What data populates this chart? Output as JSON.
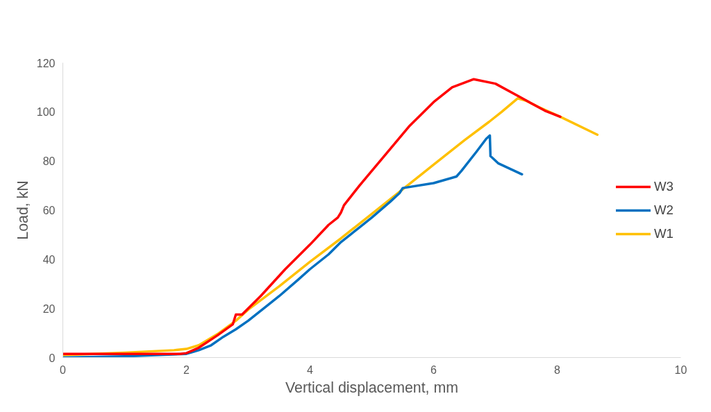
{
  "chart_data": {
    "type": "line",
    "xlabel": "Vertical displacement, mm",
    "ylabel": "Load, kN",
    "xlim": [
      0,
      10
    ],
    "xticks": [
      0,
      2,
      4,
      6,
      8,
      10
    ],
    "ylim": [
      0,
      120
    ],
    "yticks": [
      0,
      20,
      40,
      60,
      80,
      100,
      120
    ],
    "grid": false,
    "legend": "right",
    "line_style": "solid",
    "marker": "none",
    "series": [
      {
        "name": "W3",
        "color": "#ff0000",
        "x": [
          0,
          1.9,
          2.0,
          2.2,
          2.5,
          2.75,
          2.8,
          2.9,
          3.2,
          3.6,
          4.0,
          4.3,
          4.45,
          4.5,
          4.55,
          4.8,
          5.2,
          5.6,
          6.0,
          6.3,
          6.65,
          7.0,
          7.4,
          7.8,
          8.05
        ],
        "values": [
          1.5,
          1.5,
          1.8,
          4,
          9,
          13.5,
          17.5,
          17.5,
          25,
          36,
          46,
          54,
          57,
          59,
          62,
          70,
          82,
          94,
          104,
          110,
          113.3,
          111.5,
          106,
          100.5,
          98
        ]
      },
      {
        "name": "W2",
        "color": "#0070c0",
        "x": [
          0,
          1,
          2.0,
          2.2,
          2.4,
          2.6,
          2.8,
          3.0,
          3.3,
          3.5,
          3.8,
          4.0,
          4.3,
          4.5,
          4.8,
          5.0,
          5.3,
          5.45,
          5.5,
          6.0,
          6.37,
          6.45,
          6.7,
          6.85,
          6.91,
          6.92,
          7.05,
          7.43
        ],
        "values": [
          0,
          0.5,
          1.5,
          3,
          5,
          8.5,
          11.5,
          15,
          21,
          25,
          31.5,
          36,
          42,
          47,
          53,
          57,
          63.5,
          67,
          69,
          71,
          73.7,
          76,
          84,
          89,
          90.4,
          82,
          79,
          74.6
        ]
      },
      {
        "name": "W1",
        "color": "#ffc000",
        "x": [
          0,
          1,
          1.8,
          2.0,
          2.2,
          2.5,
          2.8,
          3.0,
          3.5,
          4.0,
          4.5,
          5.0,
          5.5,
          6.0,
          6.5,
          6.9,
          7.1,
          7.36,
          7.5,
          7.7,
          8.05,
          8.65
        ],
        "values": [
          1,
          2,
          3,
          3.5,
          5,
          9.5,
          15,
          19.5,
          29,
          39,
          48.5,
          58.5,
          68.5,
          78.5,
          88.5,
          96,
          100,
          105.5,
          104.5,
          102,
          98,
          90.7
        ]
      }
    ]
  }
}
